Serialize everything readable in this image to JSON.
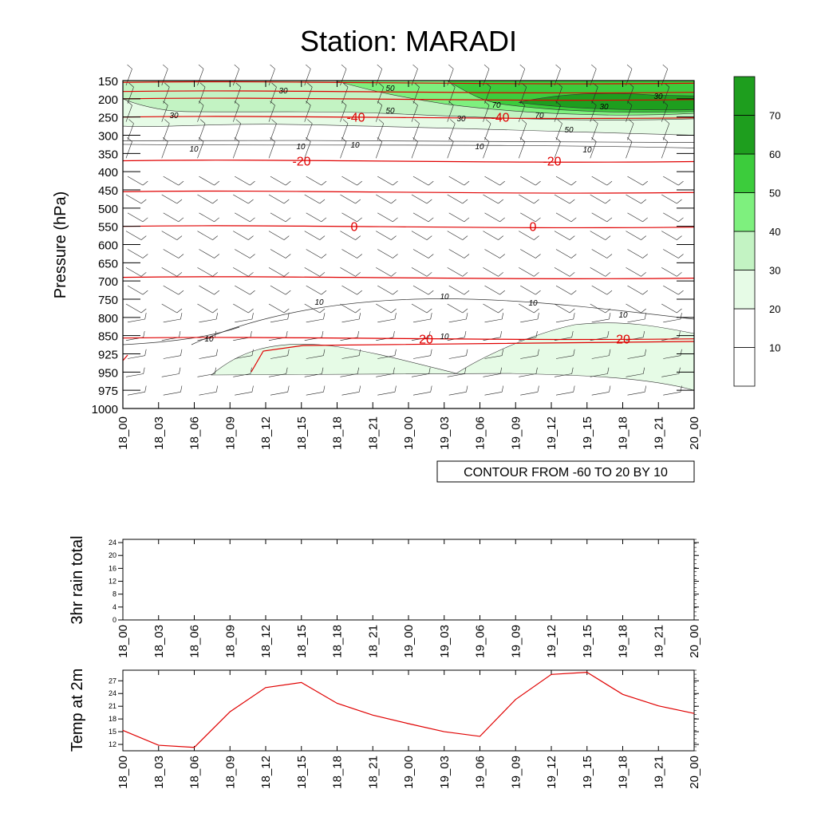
{
  "title": "Station: MARADI",
  "colors": {
    "temp_line": "#e00000",
    "contour_line": "#333333",
    "barb": "#222222",
    "fill_levels": [
      "#ffffff",
      "#ffffff",
      "#e6fbe6",
      "#c3f3c3",
      "#7ef07e",
      "#3ccc3c",
      "#1e9e1e"
    ]
  },
  "chart_data": [
    {
      "id": "cross-section",
      "type": "contour",
      "ylabel": "Pressure (hPa)",
      "y_ticks": [
        "150",
        "200",
        "250",
        "300",
        "350",
        "400",
        "450",
        "500",
        "550",
        "600",
        "650",
        "700",
        "750",
        "800",
        "850",
        "925",
        "950",
        "975",
        "1000"
      ],
      "x_ticks": [
        "18_00",
        "18_03",
        "18_06",
        "18_09",
        "18_12",
        "18_15",
        "18_18",
        "18_21",
        "19_00",
        "19_03",
        "19_06",
        "19_09",
        "19_12",
        "19_15",
        "19_18",
        "19_21",
        "20_00"
      ],
      "info_label": "CONTOUR FROM -60 TO 20 BY 10",
      "fill_variable_levels": [
        10,
        20,
        30,
        40,
        50,
        60,
        70
      ],
      "temperature_contours": [
        {
          "value": -40,
          "label": "-40",
          "pressure": 250
        },
        {
          "value": -30,
          "label": "",
          "pressure": 200
        },
        {
          "value": -50,
          "label": "",
          "pressure": 180
        },
        {
          "value": -60,
          "label": "",
          "pressure": 155
        },
        {
          "value": -20,
          "label": "-20",
          "pressure": 370
        },
        {
          "value": -10,
          "label": "",
          "pressure": 455
        },
        {
          "value": 0,
          "label": "0",
          "pressure": 550
        },
        {
          "value": 10,
          "label": "",
          "pressure": 690
        },
        {
          "value": 20,
          "label": "20",
          "pressure": 860
        }
      ],
      "shaded_contour_labels": [
        "30",
        "50",
        "30",
        "50",
        "70",
        "70",
        "30",
        "30",
        "50",
        "30",
        "10",
        "10",
        "10",
        "10",
        "10",
        "10",
        "10",
        "10",
        "10",
        "10",
        "10"
      ]
    },
    {
      "id": "rain",
      "type": "line",
      "ylabel": "3hr rain total",
      "y_ticks": [
        "0",
        "4",
        "8",
        "12",
        "16",
        "20",
        "24"
      ],
      "ylim": [
        0,
        25
      ],
      "x_ticks": [
        "18_00",
        "18_03",
        "18_06",
        "18_09",
        "18_12",
        "18_15",
        "18_18",
        "18_21",
        "19_00",
        "19_03",
        "19_06",
        "19_09",
        "19_12",
        "19_15",
        "19_18",
        "19_21",
        "20_00"
      ],
      "values": []
    },
    {
      "id": "temp2m",
      "type": "line",
      "ylabel": "Temp at 2m",
      "y_ticks": [
        "12",
        "15",
        "18",
        "21",
        "24",
        "27"
      ],
      "ylim": [
        10.5,
        29.5
      ],
      "x_ticks": [
        "18_00",
        "18_03",
        "18_06",
        "18_09",
        "18_12",
        "18_15",
        "18_18",
        "18_21",
        "19_00",
        "19_03",
        "19_06",
        "19_09",
        "19_12",
        "19_15",
        "19_18",
        "19_21",
        "20_00"
      ],
      "values": [
        15.3,
        11.8,
        11.3,
        19.7,
        25.4,
        26.6,
        21.7,
        18.9,
        16.9,
        15.0,
        13.9,
        22.6,
        28.5,
        29.0,
        23.8,
        21.1,
        19.3
      ]
    }
  ]
}
